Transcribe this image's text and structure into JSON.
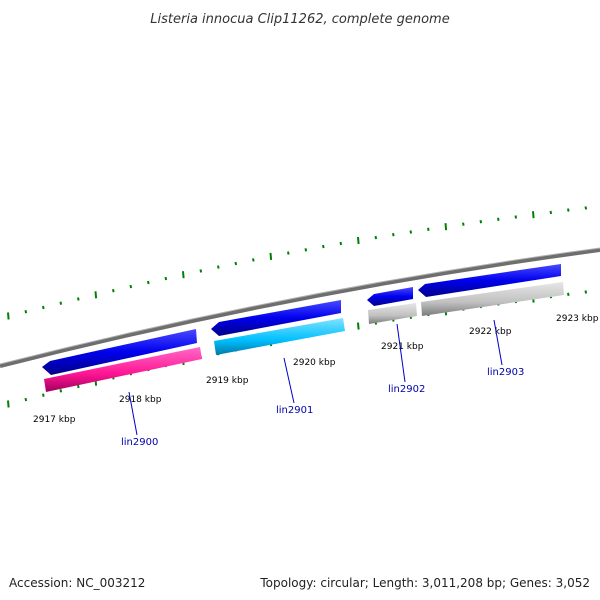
{
  "title": "Listeria innocua Clip11262, complete genome",
  "ticks": [
    {
      "pos_kbp": 2917,
      "label": "2917 kbp"
    },
    {
      "pos_kbp": 2918,
      "label": "2918 kbp"
    },
    {
      "pos_kbp": 2919,
      "label": "2919 kbp"
    },
    {
      "pos_kbp": 2920,
      "label": "2920 kbp"
    },
    {
      "pos_kbp": 2921,
      "label": "2921 kbp"
    },
    {
      "pos_kbp": 2922,
      "label": "2922 kbp"
    },
    {
      "pos_kbp": 2923,
      "label": "2923 kbp"
    }
  ],
  "genes": [
    {
      "name": "lin2900",
      "strand": "-",
      "cds_color": "#ff1493"
    },
    {
      "name": "lin2901",
      "strand": "-",
      "cds_color": "#00bfff"
    },
    {
      "name": "lin2902",
      "strand": "-",
      "cds_color": "#c0c0c0"
    },
    {
      "name": "lin2903",
      "strand": "-",
      "cds_color": "#c0c0c0"
    }
  ],
  "colors": {
    "gene_track": "#0000ff",
    "backbone": "#808080",
    "tick_marks": "#008000",
    "label_text": "#0000aa"
  },
  "footer": {
    "accession": "Accession: NC_003212",
    "topology": "Topology: circular; Length: 3,011,208 bp; Genes: 3,052"
  }
}
